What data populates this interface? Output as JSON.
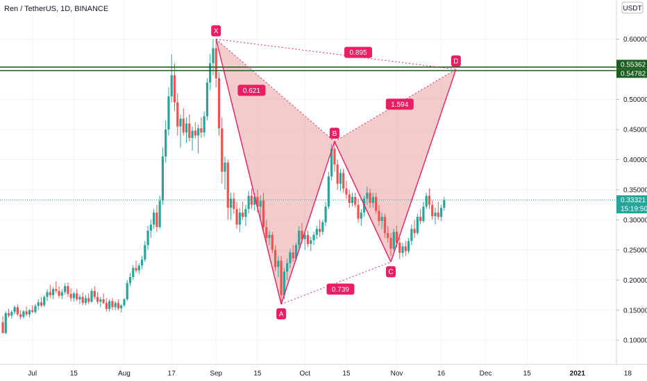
{
  "chart_data": {
    "type": "candlestick",
    "title": "Ren / TetherUS, 1D, BINANCE",
    "currency_button": "USDT",
    "ylim": [
      0.06,
      0.665
    ],
    "y_ticks": [
      "0.60000",
      "0.50000",
      "0.45000",
      "0.40000",
      "0.35000",
      "0.30000",
      "0.25000",
      "0.20000",
      "0.15000",
      "0.10000"
    ],
    "x_ticks": [
      {
        "label": "Jul",
        "date": "2020-07-01"
      },
      {
        "label": "15",
        "date": "2020-07-15"
      },
      {
        "label": "Aug",
        "date": "2020-08-01"
      },
      {
        "label": "17",
        "date": "2020-08-17"
      },
      {
        "label": "Sep",
        "date": "2020-09-01"
      },
      {
        "label": "15",
        "date": "2020-09-15"
      },
      {
        "label": "Oct",
        "date": "2020-10-01"
      },
      {
        "label": "15",
        "date": "2020-10-15"
      },
      {
        "label": "Nov",
        "date": "2020-11-01"
      },
      {
        "label": "16",
        "date": "2020-11-16"
      },
      {
        "label": "Dec",
        "date": "2020-12-01"
      },
      {
        "label": "15",
        "date": "2020-12-15"
      },
      {
        "label": "2021",
        "date": "2021-01-01"
      },
      {
        "label": "18",
        "date": "2021-01-18"
      }
    ],
    "date_range": [
      "2020-06-21",
      "2021-01-20"
    ],
    "current_price": {
      "value": 0.33321,
      "label": "0.33321",
      "countdown": "15:19:50",
      "color": "#26a69a"
    },
    "horizontal_lines": [
      {
        "value": 0.55362,
        "label": "0.55362",
        "color": "#1b5e20"
      },
      {
        "value": 0.54782,
        "label": "0.54782",
        "color": "#1b5e20"
      }
    ],
    "pattern": {
      "color": "#e91e63",
      "fill": "#e8a0a0",
      "points": [
        {
          "name": "X",
          "date": "2020-09-01",
          "value": 0.6
        },
        {
          "name": "A",
          "date": "2020-09-23",
          "value": 0.16
        },
        {
          "name": "B",
          "date": "2020-10-11",
          "value": 0.43
        },
        {
          "name": "C",
          "date": "2020-10-30",
          "value": 0.23
        },
        {
          "name": "D",
          "date": "2020-11-21",
          "value": 0.55
        }
      ],
      "ratios": [
        {
          "label": "0.621",
          "date": "2020-09-13",
          "value": 0.515
        },
        {
          "label": "0.895",
          "date": "2020-10-19",
          "value": 0.578
        },
        {
          "label": "1.594",
          "date": "2020-11-02",
          "value": 0.492
        },
        {
          "label": "0.739",
          "date": "2020-10-13",
          "value": 0.185
        }
      ]
    },
    "candles": [
      [
        "2020-06-21",
        0.13,
        0.14,
        0.112,
        0.112
      ],
      [
        "2020-06-22",
        0.112,
        0.148,
        0.11,
        0.145
      ],
      [
        "2020-06-23",
        0.145,
        0.152,
        0.138,
        0.141
      ],
      [
        "2020-06-24",
        0.141,
        0.15,
        0.136,
        0.147
      ],
      [
        "2020-06-25",
        0.147,
        0.158,
        0.143,
        0.155
      ],
      [
        "2020-06-26",
        0.155,
        0.16,
        0.14,
        0.143
      ],
      [
        "2020-06-27",
        0.143,
        0.15,
        0.135,
        0.139
      ],
      [
        "2020-06-28",
        0.139,
        0.15,
        0.136,
        0.148
      ],
      [
        "2020-06-29",
        0.148,
        0.156,
        0.14,
        0.143
      ],
      [
        "2020-06-30",
        0.143,
        0.152,
        0.138,
        0.15
      ],
      [
        "2020-07-01",
        0.15,
        0.158,
        0.145,
        0.147
      ],
      [
        "2020-07-02",
        0.147,
        0.16,
        0.144,
        0.157
      ],
      [
        "2020-07-03",
        0.157,
        0.168,
        0.15,
        0.163
      ],
      [
        "2020-07-04",
        0.163,
        0.172,
        0.155,
        0.158
      ],
      [
        "2020-07-05",
        0.158,
        0.175,
        0.155,
        0.172
      ],
      [
        "2020-07-06",
        0.172,
        0.185,
        0.165,
        0.18
      ],
      [
        "2020-07-07",
        0.18,
        0.192,
        0.17,
        0.175
      ],
      [
        "2020-07-08",
        0.175,
        0.188,
        0.168,
        0.185
      ],
      [
        "2020-07-09",
        0.185,
        0.198,
        0.178,
        0.182
      ],
      [
        "2020-07-10",
        0.182,
        0.19,
        0.17,
        0.174
      ],
      [
        "2020-07-11",
        0.174,
        0.185,
        0.168,
        0.18
      ],
      [
        "2020-07-12",
        0.18,
        0.195,
        0.176,
        0.19
      ],
      [
        "2020-07-13",
        0.19,
        0.196,
        0.172,
        0.177
      ],
      [
        "2020-07-14",
        0.177,
        0.186,
        0.165,
        0.17
      ],
      [
        "2020-07-15",
        0.17,
        0.18,
        0.164,
        0.178
      ],
      [
        "2020-07-16",
        0.178,
        0.185,
        0.165,
        0.168
      ],
      [
        "2020-07-17",
        0.168,
        0.176,
        0.16,
        0.172
      ],
      [
        "2020-07-18",
        0.172,
        0.18,
        0.158,
        0.162
      ],
      [
        "2020-07-19",
        0.162,
        0.175,
        0.158,
        0.17
      ],
      [
        "2020-07-20",
        0.17,
        0.178,
        0.16,
        0.164
      ],
      [
        "2020-07-21",
        0.164,
        0.186,
        0.162,
        0.182
      ],
      [
        "2020-07-22",
        0.182,
        0.19,
        0.168,
        0.172
      ],
      [
        "2020-07-23",
        0.172,
        0.18,
        0.16,
        0.164
      ],
      [
        "2020-07-24",
        0.164,
        0.172,
        0.155,
        0.168
      ],
      [
        "2020-07-25",
        0.168,
        0.178,
        0.16,
        0.162
      ],
      [
        "2020-07-26",
        0.162,
        0.17,
        0.148,
        0.152
      ],
      [
        "2020-07-27",
        0.152,
        0.168,
        0.148,
        0.165
      ],
      [
        "2020-07-28",
        0.165,
        0.17,
        0.15,
        0.155
      ],
      [
        "2020-07-29",
        0.155,
        0.165,
        0.15,
        0.162
      ],
      [
        "2020-07-30",
        0.162,
        0.168,
        0.15,
        0.153
      ],
      [
        "2020-07-31",
        0.153,
        0.16,
        0.146,
        0.158
      ],
      [
        "2020-08-01",
        0.158,
        0.17,
        0.155,
        0.168
      ],
      [
        "2020-08-02",
        0.168,
        0.2,
        0.165,
        0.195
      ],
      [
        "2020-08-03",
        0.195,
        0.212,
        0.19,
        0.205
      ],
      [
        "2020-08-04",
        0.205,
        0.225,
        0.2,
        0.22
      ],
      [
        "2020-08-05",
        0.22,
        0.232,
        0.212,
        0.216
      ],
      [
        "2020-08-06",
        0.216,
        0.228,
        0.21,
        0.224
      ],
      [
        "2020-08-07",
        0.224,
        0.24,
        0.218,
        0.234
      ],
      [
        "2020-08-08",
        0.234,
        0.265,
        0.23,
        0.258
      ],
      [
        "2020-08-09",
        0.258,
        0.29,
        0.25,
        0.282
      ],
      [
        "2020-08-10",
        0.282,
        0.3,
        0.27,
        0.292
      ],
      [
        "2020-08-11",
        0.292,
        0.318,
        0.285,
        0.312
      ],
      [
        "2020-08-12",
        0.312,
        0.325,
        0.28,
        0.288
      ],
      [
        "2020-08-13",
        0.288,
        0.34,
        0.285,
        0.332
      ],
      [
        "2020-08-14",
        0.332,
        0.42,
        0.325,
        0.405
      ],
      [
        "2020-08-15",
        0.405,
        0.465,
        0.395,
        0.45
      ],
      [
        "2020-08-16",
        0.45,
        0.52,
        0.44,
        0.505
      ],
      [
        "2020-08-17",
        0.505,
        0.575,
        0.495,
        0.54
      ],
      [
        "2020-08-18",
        0.54,
        0.56,
        0.48,
        0.495
      ],
      [
        "2020-08-19",
        0.495,
        0.51,
        0.44,
        0.455
      ],
      [
        "2020-08-20",
        0.455,
        0.475,
        0.42,
        0.468
      ],
      [
        "2020-08-21",
        0.468,
        0.485,
        0.44,
        0.445
      ],
      [
        "2020-08-22",
        0.445,
        0.47,
        0.428,
        0.46
      ],
      [
        "2020-08-23",
        0.46,
        0.475,
        0.43,
        0.436
      ],
      [
        "2020-08-24",
        0.436,
        0.455,
        0.415,
        0.448
      ],
      [
        "2020-08-25",
        0.448,
        0.462,
        0.435,
        0.44
      ],
      [
        "2020-08-26",
        0.44,
        0.458,
        0.41,
        0.452
      ],
      [
        "2020-08-27",
        0.452,
        0.47,
        0.436,
        0.445
      ],
      [
        "2020-08-28",
        0.445,
        0.48,
        0.438,
        0.472
      ],
      [
        "2020-08-29",
        0.472,
        0.535,
        0.465,
        0.528
      ],
      [
        "2020-08-30",
        0.528,
        0.575,
        0.515,
        0.56
      ],
      [
        "2020-08-31",
        0.56,
        0.6,
        0.54,
        0.585
      ],
      [
        "2020-09-01",
        0.585,
        0.598,
        0.52,
        0.535
      ],
      [
        "2020-09-02",
        0.535,
        0.545,
        0.44,
        0.452
      ],
      [
        "2020-09-03",
        0.452,
        0.47,
        0.36,
        0.38
      ],
      [
        "2020-09-04",
        0.38,
        0.405,
        0.35,
        0.395
      ],
      [
        "2020-09-05",
        0.395,
        0.4,
        0.3,
        0.32
      ],
      [
        "2020-09-06",
        0.32,
        0.345,
        0.3,
        0.335
      ],
      [
        "2020-09-07",
        0.335,
        0.345,
        0.31,
        0.318
      ],
      [
        "2020-09-08",
        0.318,
        0.33,
        0.285,
        0.292
      ],
      [
        "2020-09-09",
        0.292,
        0.32,
        0.28,
        0.312
      ],
      [
        "2020-09-10",
        0.312,
        0.33,
        0.3,
        0.305
      ],
      [
        "2020-09-11",
        0.305,
        0.325,
        0.29,
        0.318
      ],
      [
        "2020-09-12",
        0.318,
        0.348,
        0.31,
        0.34
      ],
      [
        "2020-09-13",
        0.34,
        0.352,
        0.318,
        0.325
      ],
      [
        "2020-09-14",
        0.325,
        0.345,
        0.315,
        0.338
      ],
      [
        "2020-09-15",
        0.338,
        0.35,
        0.312,
        0.322
      ],
      [
        "2020-09-16",
        0.322,
        0.34,
        0.3,
        0.332
      ],
      [
        "2020-09-17",
        0.332,
        0.345,
        0.28,
        0.288
      ],
      [
        "2020-09-18",
        0.288,
        0.3,
        0.262,
        0.27
      ],
      [
        "2020-09-19",
        0.27,
        0.282,
        0.258,
        0.275
      ],
      [
        "2020-09-20",
        0.275,
        0.28,
        0.245,
        0.25
      ],
      [
        "2020-09-21",
        0.25,
        0.258,
        0.215,
        0.222
      ],
      [
        "2020-09-22",
        0.222,
        0.24,
        0.205,
        0.232
      ],
      [
        "2020-09-23",
        0.232,
        0.24,
        0.16,
        0.175
      ],
      [
        "2020-09-24",
        0.175,
        0.22,
        0.168,
        0.214
      ],
      [
        "2020-09-25",
        0.214,
        0.235,
        0.2,
        0.228
      ],
      [
        "2020-09-26",
        0.228,
        0.252,
        0.22,
        0.246
      ],
      [
        "2020-09-27",
        0.246,
        0.258,
        0.23,
        0.236
      ],
      [
        "2020-09-28",
        0.236,
        0.262,
        0.232,
        0.258
      ],
      [
        "2020-09-29",
        0.258,
        0.29,
        0.252,
        0.282
      ],
      [
        "2020-09-30",
        0.282,
        0.295,
        0.262,
        0.268
      ],
      [
        "2020-10-01",
        0.268,
        0.28,
        0.25,
        0.275
      ],
      [
        "2020-10-02",
        0.275,
        0.282,
        0.255,
        0.26
      ],
      [
        "2020-10-03",
        0.26,
        0.272,
        0.248,
        0.266
      ],
      [
        "2020-10-04",
        0.266,
        0.28,
        0.258,
        0.275
      ],
      [
        "2020-10-05",
        0.275,
        0.29,
        0.268,
        0.285
      ],
      [
        "2020-10-06",
        0.285,
        0.3,
        0.272,
        0.28
      ],
      [
        "2020-10-07",
        0.28,
        0.3,
        0.275,
        0.296
      ],
      [
        "2020-10-08",
        0.296,
        0.33,
        0.29,
        0.322
      ],
      [
        "2020-10-09",
        0.322,
        0.38,
        0.318,
        0.372
      ],
      [
        "2020-10-10",
        0.372,
        0.425,
        0.365,
        0.418
      ],
      [
        "2020-10-11",
        0.418,
        0.432,
        0.38,
        0.392
      ],
      [
        "2020-10-12",
        0.392,
        0.4,
        0.35,
        0.36
      ],
      [
        "2020-10-13",
        0.36,
        0.385,
        0.348,
        0.378
      ],
      [
        "2020-10-14",
        0.378,
        0.385,
        0.345,
        0.352
      ],
      [
        "2020-10-15",
        0.352,
        0.365,
        0.335,
        0.342
      ],
      [
        "2020-10-16",
        0.342,
        0.35,
        0.32,
        0.328
      ],
      [
        "2020-10-17",
        0.328,
        0.345,
        0.322,
        0.338
      ],
      [
        "2020-10-18",
        0.338,
        0.345,
        0.32,
        0.325
      ],
      [
        "2020-10-19",
        0.325,
        0.335,
        0.295,
        0.302
      ],
      [
        "2020-10-20",
        0.302,
        0.318,
        0.29,
        0.312
      ],
      [
        "2020-10-21",
        0.312,
        0.34,
        0.305,
        0.335
      ],
      [
        "2020-10-22",
        0.335,
        0.355,
        0.325,
        0.345
      ],
      [
        "2020-10-23",
        0.345,
        0.352,
        0.32,
        0.328
      ],
      [
        "2020-10-24",
        0.328,
        0.345,
        0.32,
        0.338
      ],
      [
        "2020-10-25",
        0.338,
        0.345,
        0.31,
        0.315
      ],
      [
        "2020-10-26",
        0.315,
        0.325,
        0.29,
        0.298
      ],
      [
        "2020-10-27",
        0.298,
        0.312,
        0.285,
        0.305
      ],
      [
        "2020-10-28",
        0.305,
        0.31,
        0.27,
        0.278
      ],
      [
        "2020-10-29",
        0.278,
        0.29,
        0.262,
        0.27
      ],
      [
        "2020-10-30",
        0.27,
        0.278,
        0.24,
        0.252
      ],
      [
        "2020-10-31",
        0.252,
        0.285,
        0.248,
        0.28
      ],
      [
        "2020-11-01",
        0.28,
        0.29,
        0.255,
        0.262
      ],
      [
        "2020-11-02",
        0.262,
        0.27,
        0.235,
        0.245
      ],
      [
        "2020-11-03",
        0.245,
        0.262,
        0.238,
        0.256
      ],
      [
        "2020-11-04",
        0.256,
        0.265,
        0.24,
        0.248
      ],
      [
        "2020-11-05",
        0.248,
        0.27,
        0.244,
        0.265
      ],
      [
        "2020-11-06",
        0.265,
        0.292,
        0.258,
        0.285
      ],
      [
        "2020-11-07",
        0.285,
        0.3,
        0.27,
        0.278
      ],
      [
        "2020-11-08",
        0.278,
        0.31,
        0.275,
        0.305
      ],
      [
        "2020-11-09",
        0.305,
        0.318,
        0.292,
        0.298
      ],
      [
        "2020-11-10",
        0.298,
        0.33,
        0.295,
        0.322
      ],
      [
        "2020-11-11",
        0.322,
        0.345,
        0.318,
        0.34
      ],
      [
        "2020-11-12",
        0.34,
        0.352,
        0.318,
        0.325
      ],
      [
        "2020-11-13",
        0.325,
        0.332,
        0.3,
        0.306
      ],
      [
        "2020-11-14",
        0.306,
        0.32,
        0.292,
        0.312
      ],
      [
        "2020-11-15",
        0.312,
        0.33,
        0.3,
        0.305
      ],
      [
        "2020-11-16",
        0.305,
        0.325,
        0.298,
        0.32
      ],
      [
        "2020-11-17",
        0.32,
        0.338,
        0.315,
        0.333
      ]
    ]
  }
}
